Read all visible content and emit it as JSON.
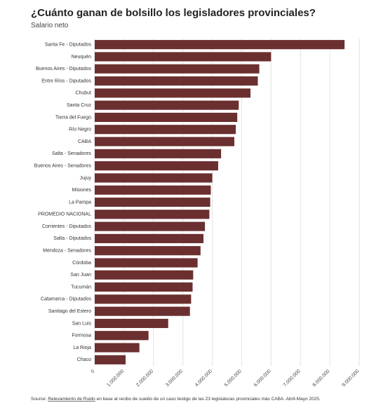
{
  "chart_data": {
    "type": "bar",
    "orientation": "horizontal",
    "title": "¿Cuánto ganan de bolsillo los legisladores provinciales?",
    "subtitle": "Salario neto",
    "categories": [
      "Santa Fe - Diputados",
      "Neuquén",
      "Buenos Aires - Diputados",
      "Entre Ríos - Diputados",
      "Chubut",
      "Santa Cruz",
      "Tierra del Fuego",
      "Río Negro",
      "CABA",
      "Salta - Senadores",
      "Buenos Aires - Senadores",
      "Jujuy",
      "Misiones",
      "La Pampa",
      "PROMEDIO NACIONAL",
      "Corrientes - Diputados",
      "Salta - Diputados",
      "Mendoza - Senadores",
      "Córdoba",
      "San Juan",
      "Tucumán",
      "Catamarca - Diputados",
      "Santiago del Estero",
      "San Luis",
      "Formosa",
      "La Rioja",
      "Chaco"
    ],
    "values": [
      8500000,
      6000000,
      5600000,
      5550000,
      5300000,
      4900000,
      4850000,
      4800000,
      4750000,
      4300000,
      4200000,
      4000000,
      3950000,
      3930000,
      3900000,
      3750000,
      3700000,
      3600000,
      3500000,
      3350000,
      3330000,
      3280000,
      3240000,
      2500000,
      1830000,
      1520000,
      1050000
    ],
    "color": "#6b2f30",
    "xlim": [
      0,
      9000000
    ],
    "xticks": [
      0,
      {
        "value": 1000000,
        "label": "1.000.000"
      },
      {
        "value": 2000000,
        "label": "2.000.000"
      },
      {
        "value": 3000000,
        "label": "3.000.000"
      },
      {
        "value": 4000000,
        "label": "4.000.000"
      },
      {
        "value": 5000000,
        "label": "5.000.000"
      },
      {
        "value": 6000000,
        "label": "6.000.000"
      },
      {
        "value": 7000000,
        "label": "7.000.000"
      },
      {
        "value": 8000000,
        "label": "8.000.000"
      },
      {
        "value": 9000000,
        "label": "9.000.000"
      }
    ],
    "grid": true,
    "source_label": "Source:",
    "source_link": "Relevamiento de Ruido",
    "source_text": "en base al recibo de sueldo de un caso testigo de las 23 legislaturas provinciales más CABA. Abril-Mayo 2025."
  }
}
